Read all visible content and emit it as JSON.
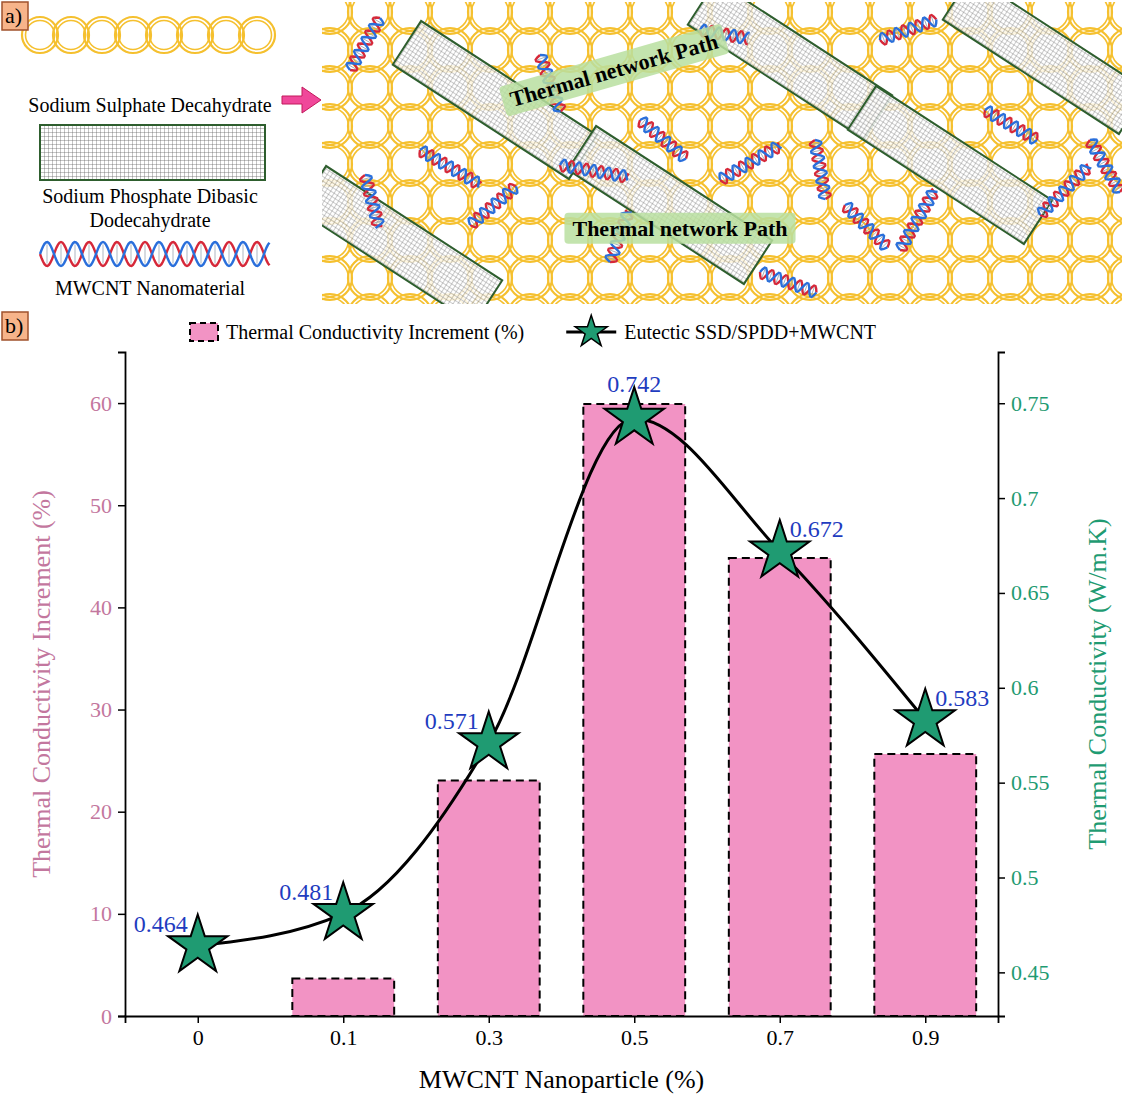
{
  "diagram": {
    "panel_label": "a)",
    "components": [
      {
        "label": "Sodium Sulphate Decahydrate"
      },
      {
        "label": "Sodium Phosphate Dibasic Dodecahydrate"
      },
      {
        "label": "MWCNT Nanomaterial"
      }
    ],
    "annotations": [
      "Thermal network Path",
      "Thermal network Path"
    ]
  },
  "chart_data": {
    "type": "bar",
    "panel_label": "b)",
    "x_label": "MWCNT Nanoparticle (%)",
    "y_label": "Thermal Conductivity Increment (%)",
    "y2_label": "Thermal Conductivity (W/m.K)",
    "categories": [
      "0",
      "0.1",
      "0.3",
      "0.5",
      "0.7",
      "0.9"
    ],
    "series": [
      {
        "name": "Thermal Conductivity Increment (%)",
        "type": "bar",
        "color": "#f293c4",
        "values": [
          0,
          3.66,
          23.06,
          59.91,
          44.83,
          25.65
        ]
      },
      {
        "name": "Eutectic SSD/SPDD+MWCNT",
        "type": "line",
        "axis": "y2",
        "color": "#1f9b72",
        "marker": "star",
        "data_labels": true,
        "values": [
          0.464,
          0.481,
          0.571,
          0.742,
          0.672,
          0.583
        ]
      }
    ],
    "ylim": [
      0,
      65
    ],
    "yticks": [
      0,
      10,
      20,
      30,
      40,
      50,
      60
    ],
    "y2lim": [
      0.427,
      0.777
    ],
    "y2ticks": [
      0.45,
      0.5,
      0.55,
      0.6,
      0.65,
      0.7,
      0.75
    ],
    "legend": "top",
    "grid": false
  }
}
